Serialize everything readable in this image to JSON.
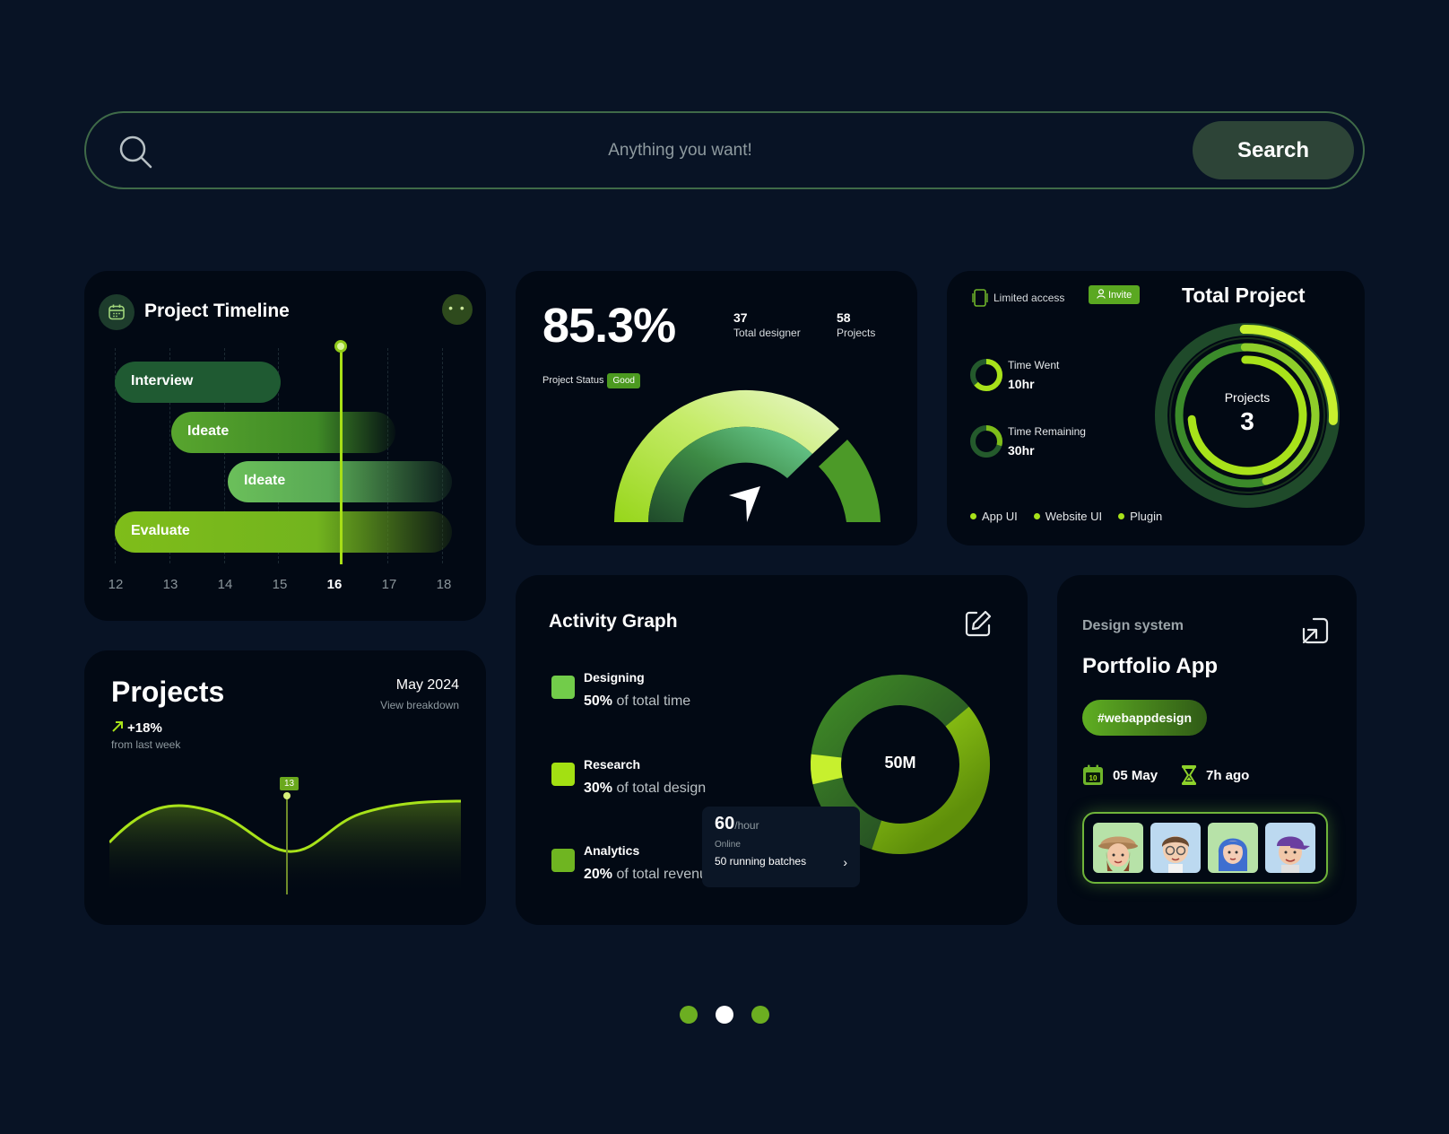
{
  "search": {
    "placeholder": "Anything you want!",
    "button_label": "Search"
  },
  "timeline": {
    "title": "Project Timeline",
    "more_label": "• •",
    "bars": [
      "Interview",
      "Ideate",
      "Ideate",
      "Evaluate"
    ],
    "days": [
      "12",
      "13",
      "14",
      "15",
      "16",
      "17",
      "18"
    ],
    "active_day": "16"
  },
  "projects": {
    "title": "Projects",
    "change": "+18%",
    "change_sub": "from last week",
    "date": "May 2024",
    "link": "View breakdown",
    "marker": "13"
  },
  "gauge": {
    "value": "85.3%",
    "stats": [
      {
        "value": "37",
        "label": "Total designer"
      },
      {
        "value": "58",
        "label": "Projects"
      }
    ],
    "status_label": "Project Status",
    "status_badge": "Good"
  },
  "total_project": {
    "access_label": "Limited access",
    "invite_label": "Invite",
    "title": "Total Project",
    "stats": [
      {
        "label": "Time Went",
        "value": "10hr"
      },
      {
        "label": "Time Remaining",
        "value": "30hr"
      }
    ],
    "center_label": "Projects",
    "center_value": "3",
    "legend": [
      "App UI",
      "Website UI",
      "Plugin"
    ]
  },
  "activity": {
    "title": "Activity Graph",
    "items": [
      {
        "name": "Designing",
        "pct": "50%",
        "desc": "of total time",
        "color": "#72cc4a"
      },
      {
        "name": "Research",
        "pct": "30%",
        "desc": "of total design",
        "color": "#a3e012"
      },
      {
        "name": "Analytics",
        "pct": "20%",
        "desc": "of total revenue",
        "color": "#6fb521"
      }
    ],
    "donut_center": "50M",
    "tooltip": {
      "value": "60",
      "unit": "/hour",
      "status": "Online",
      "detail": "50 running batches"
    }
  },
  "portfolio": {
    "label": "Design system",
    "title": "Portfolio App",
    "tag": "#webappdesign",
    "date": "05 May",
    "time": "7h ago",
    "calendar_day": "10"
  },
  "colors": {
    "background": "#081325",
    "card": "#020914",
    "accent": "#a8e21a",
    "green": "#4c9a20"
  }
}
